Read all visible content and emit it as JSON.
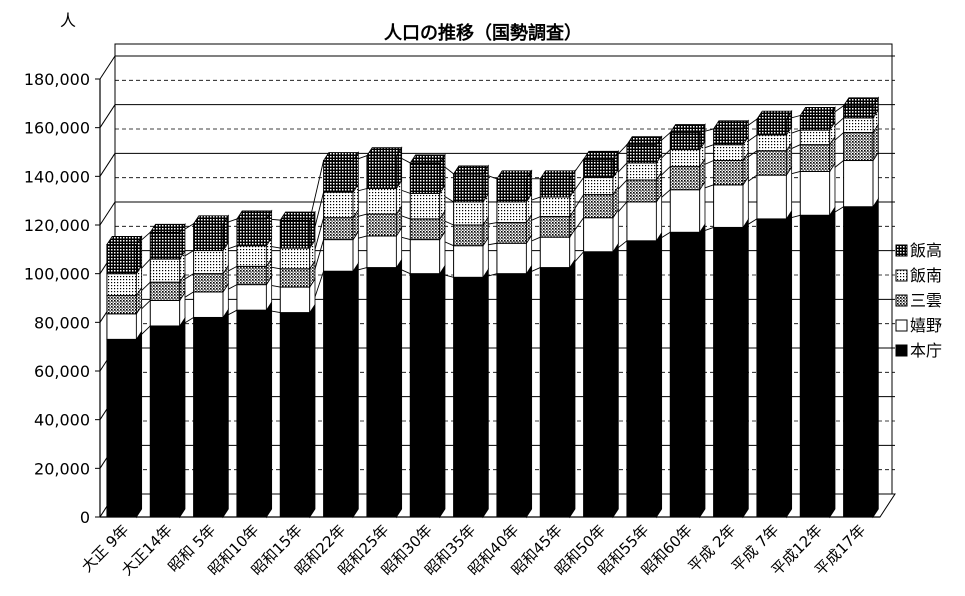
{
  "chart_data": {
    "type": "bar",
    "stacked": true,
    "title": "人口の推移（国勢調査）",
    "ylabel": "人",
    "xlabel": "",
    "ylim": [
      0,
      180000
    ],
    "yticks": [
      0,
      20000,
      40000,
      60000,
      80000,
      100000,
      120000,
      140000,
      160000,
      180000
    ],
    "ytick_labels": [
      "0",
      "20,000",
      "40,000",
      "60,000",
      "80,000",
      "100,000",
      "120,000",
      "140,000",
      "160,000",
      "180,000"
    ],
    "grid": true,
    "legend_position": "right",
    "categories": [
      "大正 9年",
      "大正14年",
      "昭和 5年",
      "昭和10年",
      "昭和15年",
      "昭和22年",
      "昭和25年",
      "昭和30年",
      "昭和35年",
      "昭和40年",
      "昭和45年",
      "昭和50年",
      "昭和55年",
      "昭和60年",
      "平成 2年",
      "平成 7年",
      "平成12年",
      "平成17年"
    ],
    "series": [
      {
        "name": "本庁",
        "color": "#000000",
        "pattern": "solid",
        "values": [
          73000,
          78500,
          82000,
          85000,
          84000,
          101000,
          102500,
          100000,
          98500,
          100000,
          102500,
          109000,
          113500,
          117000,
          119000,
          122500,
          124000,
          127500
        ]
      },
      {
        "name": "嬉野",
        "color": "#ffffff",
        "pattern": "blank",
        "values": [
          10500,
          10500,
          10500,
          10500,
          10500,
          13000,
          13000,
          14000,
          13000,
          12500,
          12500,
          14000,
          16000,
          17500,
          17500,
          18000,
          18000,
          19000
        ]
      },
      {
        "name": "三雲",
        "color": "#9a9a9a",
        "pattern": "dense-dots",
        "values": [
          7500,
          7500,
          7500,
          7500,
          7500,
          9000,
          9000,
          8500,
          8500,
          8500,
          8500,
          9500,
          9000,
          9500,
          10000,
          10000,
          11000,
          11500
        ]
      },
      {
        "name": "飯南",
        "color": "#cfcfcf",
        "pattern": "light-dots",
        "values": [
          9000,
          9500,
          9500,
          8500,
          8500,
          10500,
          10500,
          10500,
          9500,
          8500,
          8000,
          7000,
          7000,
          7000,
          6500,
          6500,
          6000,
          6000
        ]
      },
      {
        "name": "飯高",
        "color": "#6e6e6e",
        "pattern": "dark-dots",
        "values": [
          12000,
          11000,
          11000,
          11000,
          11500,
          13000,
          13500,
          12500,
          11500,
          9500,
          7500,
          7500,
          7500,
          7000,
          6500,
          6500,
          6000,
          5000
        ]
      }
    ]
  }
}
